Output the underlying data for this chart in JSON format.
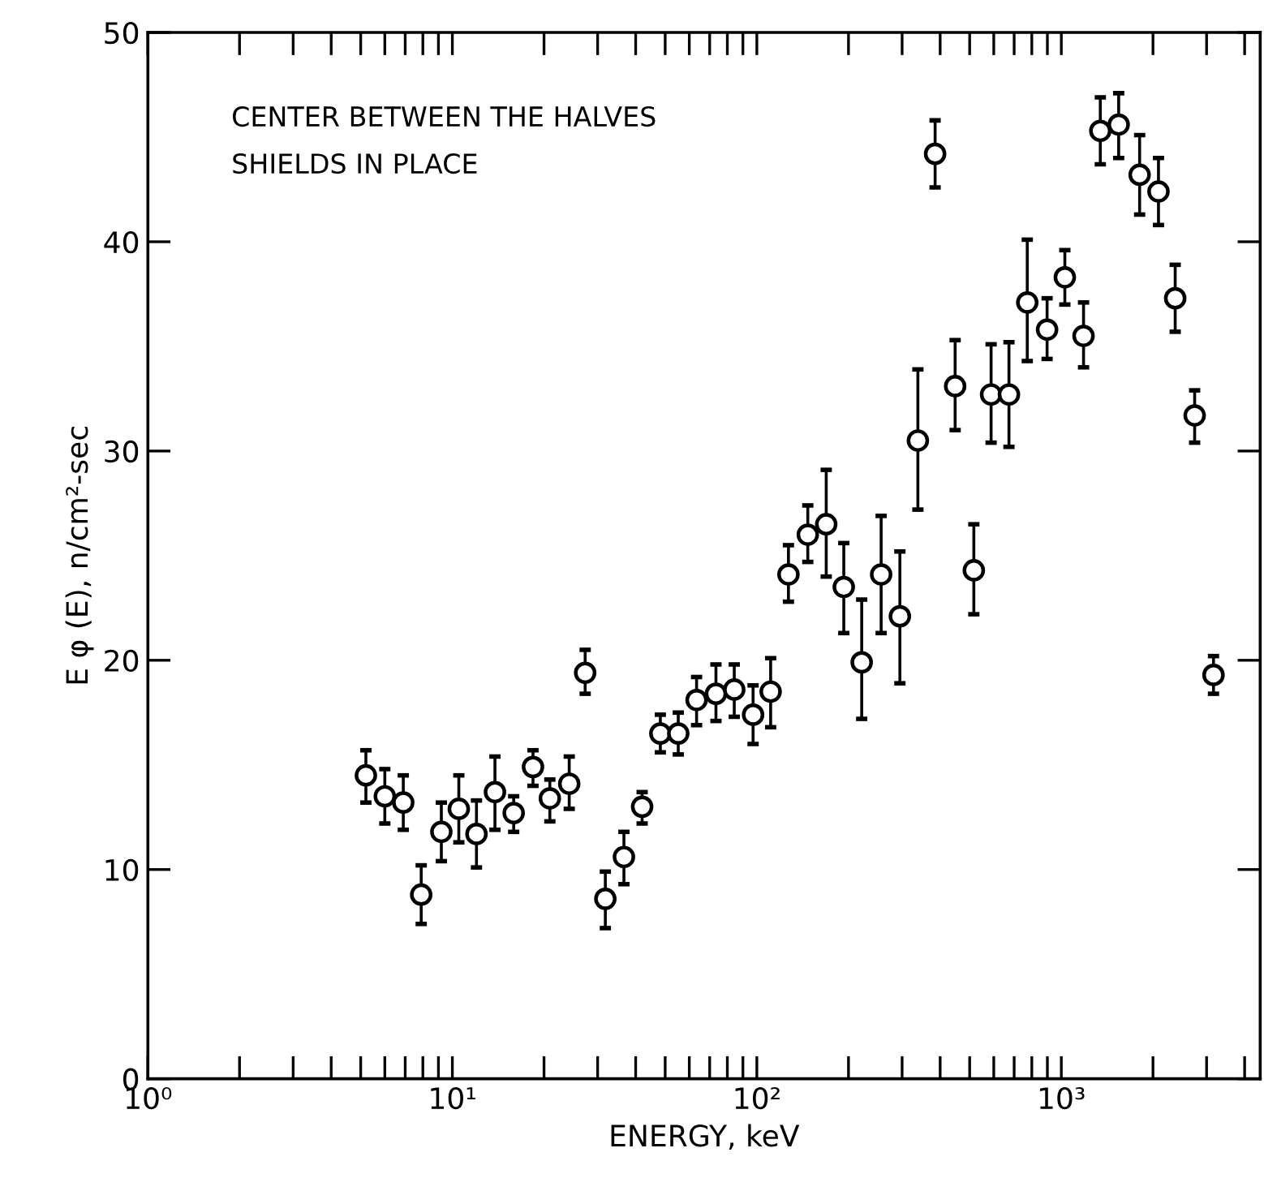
{
  "chart_data": {
    "type": "scatter",
    "xlabel": "ENERGY, keV",
    "ylabel": "E φ (E), n/cm²-sec",
    "annotations": [
      "CENTER BETWEEN THE HALVES",
      "SHIELDS IN PLACE"
    ],
    "log": "x",
    "xlim": [
      1,
      4500
    ],
    "ylim": [
      0,
      50
    ],
    "xticks": [
      {
        "value": 1,
        "label": "10⁰"
      },
      {
        "value": 2,
        "label": null
      },
      {
        "value": 3,
        "label": null
      },
      {
        "value": 4,
        "label": null
      },
      {
        "value": 5,
        "label": null
      },
      {
        "value": 6,
        "label": null
      },
      {
        "value": 7,
        "label": null
      },
      {
        "value": 8,
        "label": null
      },
      {
        "value": 9,
        "label": null
      },
      {
        "value": 10,
        "label": "10¹"
      },
      {
        "value": 20,
        "label": null
      },
      {
        "value": 30,
        "label": null
      },
      {
        "value": 40,
        "label": null
      },
      {
        "value": 50,
        "label": null
      },
      {
        "value": 60,
        "label": null
      },
      {
        "value": 70,
        "label": null
      },
      {
        "value": 80,
        "label": null
      },
      {
        "value": 90,
        "label": null
      },
      {
        "value": 100,
        "label": "10²"
      },
      {
        "value": 200,
        "label": null
      },
      {
        "value": 300,
        "label": null
      },
      {
        "value": 400,
        "label": null
      },
      {
        "value": 500,
        "label": null
      },
      {
        "value": 600,
        "label": null
      },
      {
        "value": 700,
        "label": null
      },
      {
        "value": 800,
        "label": null
      },
      {
        "value": 900,
        "label": null
      },
      {
        "value": 1000,
        "label": "10³"
      },
      {
        "value": 2000,
        "label": null
      },
      {
        "value": 3000,
        "label": null
      },
      {
        "value": 4000,
        "label": null
      }
    ],
    "yticks": [
      0,
      10,
      20,
      30,
      40,
      50
    ],
    "grid": false,
    "legend": false,
    "marker": "circle",
    "series": [
      {
        "color": "#000000",
        "x": [
          5.2,
          6.0,
          6.9,
          7.9,
          9.2,
          10.5,
          12.0,
          13.8,
          15.9,
          18.4,
          20.9,
          24.2,
          27.3,
          31.8,
          36.6,
          42.0,
          48.2,
          55.2,
          63.4,
          73.4,
          84.3,
          97.2,
          111,
          127,
          147,
          169,
          193,
          221,
          256,
          295,
          338,
          385,
          448,
          516,
          588,
          673,
          773,
          898,
          1027,
          1183,
          1343,
          1543,
          1808,
          2085,
          2366,
          2741,
          3161
        ],
        "values": [
          14.5,
          13.5,
          13.2,
          8.8,
          11.8,
          12.9,
          11.7,
          13.7,
          12.7,
          14.9,
          13.4,
          14.1,
          19.4,
          8.6,
          10.6,
          13.0,
          16.5,
          16.5,
          18.1,
          18.4,
          18.6,
          17.4,
          18.5,
          24.1,
          26.0,
          26.5,
          23.5,
          19.9,
          24.1,
          22.1,
          30.5,
          44.2,
          33.1,
          24.3,
          32.7,
          32.7,
          37.1,
          35.8,
          38.3,
          35.5,
          45.3,
          45.6,
          43.2,
          42.4,
          37.3,
          31.7,
          19.3
        ],
        "errors": [
          [
            13.2,
            15.7
          ],
          [
            12.2,
            14.8
          ],
          [
            11.9,
            14.5
          ],
          [
            7.4,
            10.2
          ],
          [
            10.4,
            13.2
          ],
          [
            11.3,
            14.5
          ],
          [
            10.1,
            13.3
          ],
          [
            11.9,
            15.4
          ],
          [
            11.8,
            13.5
          ],
          [
            14.0,
            15.7
          ],
          [
            12.3,
            14.3
          ],
          [
            12.9,
            15.4
          ],
          [
            18.4,
            20.5
          ],
          [
            7.2,
            9.9
          ],
          [
            9.3,
            11.8
          ],
          [
            12.2,
            13.7
          ],
          [
            15.6,
            17.4
          ],
          [
            15.5,
            17.5
          ],
          [
            16.9,
            19.2
          ],
          [
            17.1,
            19.8
          ],
          [
            17.3,
            19.8
          ],
          [
            16.0,
            18.8
          ],
          [
            16.8,
            20.1
          ],
          [
            22.8,
            25.5
          ],
          [
            24.7,
            27.4
          ],
          [
            24.0,
            29.1
          ],
          [
            21.3,
            25.6
          ],
          [
            17.2,
            22.9
          ],
          [
            21.3,
            26.9
          ],
          [
            18.9,
            25.2
          ],
          [
            27.2,
            33.9
          ],
          [
            42.6,
            45.8
          ],
          [
            31.0,
            35.3
          ],
          [
            22.2,
            26.5
          ],
          [
            30.4,
            35.1
          ],
          [
            30.2,
            35.2
          ],
          [
            34.3,
            40.1
          ],
          [
            34.4,
            37.3
          ],
          [
            37.0,
            39.6
          ],
          [
            34.0,
            37.1
          ],
          [
            43.7,
            46.9
          ],
          [
            44.0,
            47.1
          ],
          [
            41.3,
            45.1
          ],
          [
            40.8,
            44.0
          ],
          [
            35.7,
            38.9
          ],
          [
            30.4,
            32.9
          ],
          [
            18.4,
            20.2
          ]
        ]
      }
    ]
  }
}
